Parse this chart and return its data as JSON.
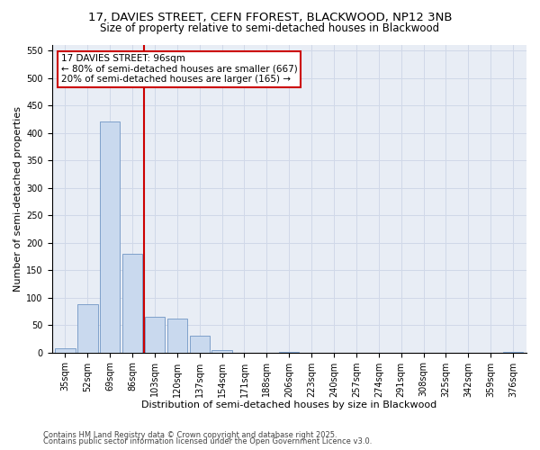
{
  "title_line1": "17, DAVIES STREET, CEFN FFOREST, BLACKWOOD, NP12 3NB",
  "title_line2": "Size of property relative to semi-detached houses in Blackwood",
  "xlabel": "Distribution of semi-detached houses by size in Blackwood",
  "ylabel": "Number of semi-detached properties",
  "footer_line1": "Contains HM Land Registry data © Crown copyright and database right 2025.",
  "footer_line2": "Contains public sector information licensed under the Open Government Licence v3.0.",
  "bin_labels": [
    "35sqm",
    "52sqm",
    "69sqm",
    "86sqm",
    "103sqm",
    "120sqm",
    "137sqm",
    "154sqm",
    "171sqm",
    "188sqm",
    "206sqm",
    "223sqm",
    "240sqm",
    "257sqm",
    "274sqm",
    "291sqm",
    "308sqm",
    "325sqm",
    "342sqm",
    "359sqm",
    "376sqm"
  ],
  "bar_values": [
    8,
    88,
    420,
    180,
    65,
    62,
    30,
    5,
    0,
    0,
    1,
    0,
    0,
    0,
    0,
    0,
    0,
    0,
    0,
    0,
    1
  ],
  "bar_color": "#c9d9ee",
  "bar_edgecolor": "#7096c4",
  "bar_width": 0.9,
  "vline_x": 3.5,
  "vline_color": "#cc0000",
  "ylim": [
    0,
    560
  ],
  "yticks": [
    0,
    50,
    100,
    150,
    200,
    250,
    300,
    350,
    400,
    450,
    500,
    550
  ],
  "annotation_title": "17 DAVIES STREET: 96sqm",
  "annotation_line1": "← 80% of semi-detached houses are smaller (667)",
  "annotation_line2": "20% of semi-detached houses are larger (165) →",
  "bg_color": "#e8edf5",
  "grid_color": "#d0d8e8",
  "title_fontsize": 9.5,
  "subtitle_fontsize": 8.5,
  "axis_label_fontsize": 8,
  "tick_fontsize": 7,
  "annot_fontsize": 7.5,
  "footer_fontsize": 6
}
